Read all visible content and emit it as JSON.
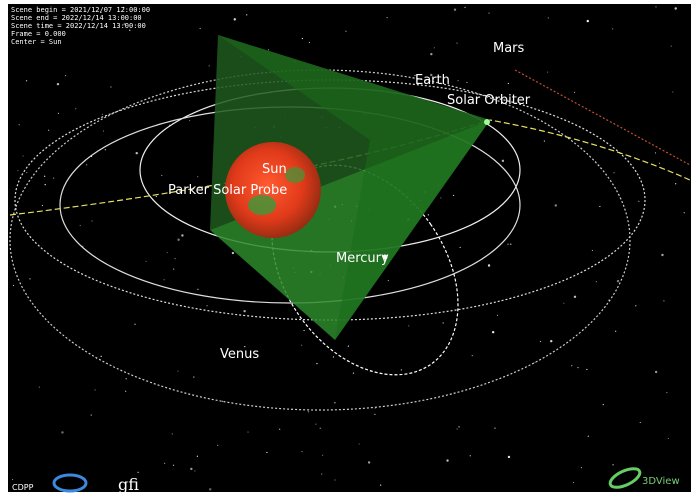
{
  "info": {
    "lines": [
      "Scene begin = 2021/12/07 12:00:00",
      "Scene end = 2022/12/14 13:00:00",
      "Scene time = 2022/12/14 13:00:00",
      "Frame = 0.000",
      "Center = Sun"
    ]
  },
  "labels": {
    "mars": "Mars",
    "earth": "Earth",
    "solar_orbiter": "Solar Orbiter",
    "sun": "Sun",
    "parker": "Parker Solar Probe",
    "mercury": "Mercury",
    "venus": "Venus"
  },
  "logos": {
    "cdpp": "CDPP",
    "gfi": "gfi",
    "threedview": "3DView"
  }
}
